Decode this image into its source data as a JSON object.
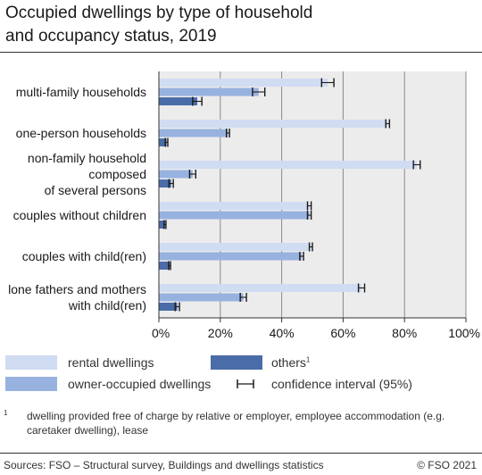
{
  "title_line1": "Occupied dwellings by type of household",
  "title_line2": "and occupancy status, 2019",
  "legend": {
    "rental": "rental dwellings",
    "owner": "owner-occupied dwellings",
    "others": "others",
    "others_sup": "1",
    "ci": "confidence interval (95%)"
  },
  "footnote": {
    "mark": "1",
    "text": "dwelling provided free of charge by relative or employer, employee accommodation (e.g. caretaker dwelling), lease"
  },
  "sources": "Sources: FSO – Structural survey, Buildings and dwellings statistics",
  "copyright": "© FSO 2021",
  "colors": {
    "rental": "#d0dcf2",
    "owner": "#98b2e0",
    "others": "#4a6ca8",
    "plot_bg": "#ececec"
  },
  "chart_data": {
    "type": "bar",
    "orientation": "horizontal",
    "categories": [
      [
        "multi-family households"
      ],
      [
        "one-person households"
      ],
      [
        "non-family household",
        "composed",
        "of several persons"
      ],
      [
        "couples without children"
      ],
      [
        "couples with child(ren)"
      ],
      [
        "lone fathers and mothers",
        "with child(ren)"
      ]
    ],
    "series": [
      {
        "name": "rental dwellings",
        "values": [
          55,
          74.5,
          84,
          49,
          49.5,
          66
        ],
        "ci": [
          2,
          0.6,
          1.1,
          0.6,
          0.5,
          1.0
        ]
      },
      {
        "name": "owner-occupied dwellings",
        "values": [
          32.5,
          22.5,
          11,
          49,
          46.5,
          27.5
        ],
        "ci": [
          2,
          0.5,
          1.0,
          0.6,
          0.6,
          1.0
        ]
      },
      {
        "name": "others",
        "values": [
          12.5,
          2.5,
          4,
          2,
          3.5,
          6
        ],
        "ci": [
          1.5,
          0.4,
          0.7,
          0.3,
          0.3,
          0.7
        ]
      }
    ],
    "xlim": [
      0,
      100
    ],
    "ticks": [
      0,
      20,
      40,
      60,
      80,
      100
    ],
    "tick_labels": [
      "0%",
      "20%",
      "40%",
      "60%",
      "80%",
      "100%"
    ],
    "grid": true
  }
}
